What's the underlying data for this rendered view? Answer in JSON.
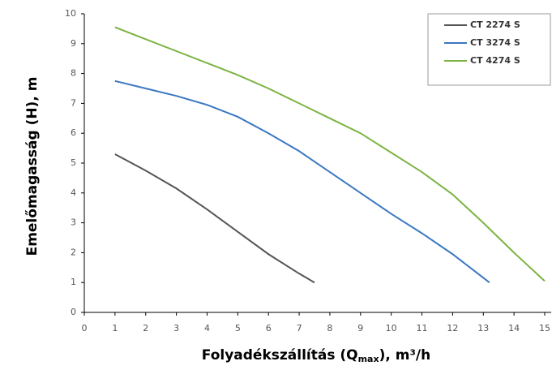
{
  "chart_data": {
    "type": "line",
    "ylabel": "Emelőmagasság (H), m",
    "xlabel_parts": [
      "Folyadékszállítás (Q",
      "max",
      "), m³/h"
    ],
    "xlim": [
      0,
      15
    ],
    "ylim": [
      0,
      10
    ],
    "xticks": [
      0,
      1,
      2,
      3,
      4,
      5,
      6,
      7,
      8,
      9,
      10,
      11,
      12,
      13,
      14,
      15
    ],
    "yticks": [
      0,
      1,
      2,
      3,
      4,
      5,
      6,
      7,
      8,
      9,
      10
    ],
    "grid": false,
    "legend": "upper right",
    "series": [
      {
        "name": "CT 2274 S",
        "color": "#555555",
        "x": [
          1,
          2,
          3,
          4,
          5,
          6,
          7,
          7.5
        ],
        "values": [
          5.3,
          4.75,
          4.15,
          3.45,
          2.7,
          1.95,
          1.3,
          1.0
        ]
      },
      {
        "name": "CT 3274 S",
        "color": "#3a78c3",
        "x": [
          1,
          2,
          3,
          4,
          5,
          6,
          7,
          8,
          9,
          10,
          11,
          12,
          13.2
        ],
        "values": [
          7.75,
          7.5,
          7.25,
          6.95,
          6.55,
          6.0,
          5.4,
          4.7,
          4.0,
          3.3,
          2.65,
          1.95,
          1.0
        ]
      },
      {
        "name": "CT 4274 S",
        "color": "#7cb342",
        "x": [
          1,
          2,
          3,
          4,
          5,
          6,
          7,
          8,
          9,
          10,
          11,
          12,
          13,
          14,
          15
        ],
        "values": [
          9.55,
          9.15,
          8.75,
          8.35,
          7.95,
          7.5,
          7.0,
          6.5,
          6.0,
          5.35,
          4.7,
          3.95,
          3.0,
          2.0,
          1.05
        ]
      }
    ]
  }
}
